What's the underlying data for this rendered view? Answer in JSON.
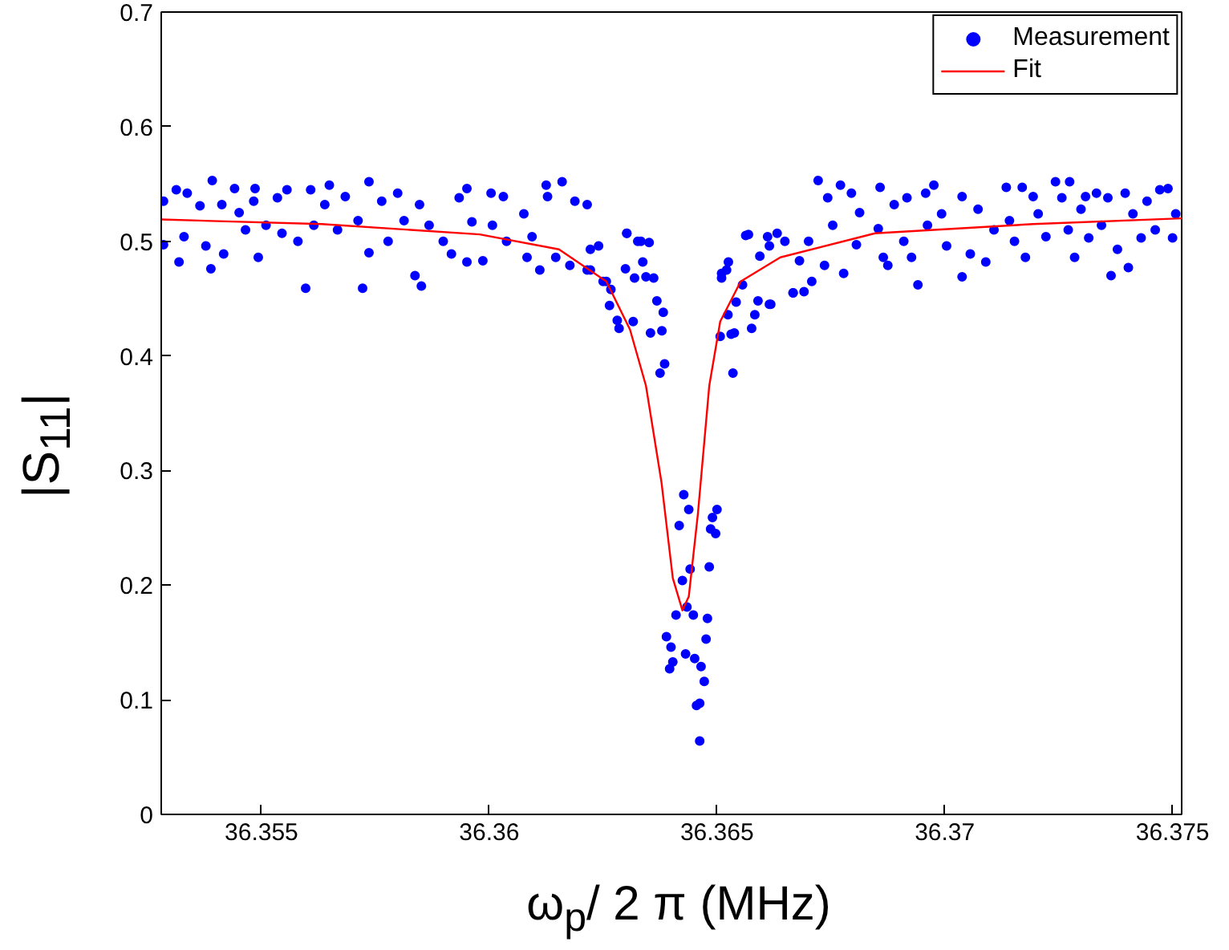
{
  "chart_data": {
    "type": "scatter",
    "xlabel": "ω$_{p}$/ 2 π (MHz)",
    "ylabel": "|S$_{11}$|",
    "xlim": [
      36.3528,
      36.3752
    ],
    "xticks": [
      36.355,
      36.36,
      36.365,
      36.37,
      36.375
    ],
    "ylim": [
      0,
      0.7
    ],
    "yticks": [
      0,
      0.1,
      0.2,
      0.3,
      0.4,
      0.5,
      0.6,
      0.7
    ],
    "grid": false,
    "legend": "top right",
    "series": [
      {
        "name": "Measurement",
        "marker": "circle",
        "color": "#0000ff",
        "x": [
          36.35285,
          36.35285,
          36.35313,
          36.35319,
          36.35337,
          36.3533,
          36.35365,
          36.35378,
          36.35392,
          36.35389,
          36.35413,
          36.35417,
          36.35441,
          36.35451,
          36.35465,
          36.35486,
          36.35483,
          36.35493,
          36.3551,
          36.35535,
          36.35545,
          36.35556,
          36.3558,
          36.35597,
          36.35608,
          36.35615,
          36.35639,
          36.35649,
          36.35667,
          36.35684,
          36.35712,
          36.35722,
          36.35736,
          36.35736,
          36.35764,
          36.35778,
          36.35799,
          36.35813,
          36.35837,
          36.35851,
          36.35847,
          36.35868,
          36.35899,
          36.35917,
          36.35934,
          36.35951,
          36.35951,
          36.35962,
          36.35986,
          36.36004,
          36.36007,
          36.36031,
          36.36038,
          36.36076,
          36.36083,
          36.36094,
          36.36125,
          36.36128,
          36.36111,
          36.3616,
          36.36146,
          36.36177,
          36.36188,
          36.36215,
          36.36222,
          36.3624,
          36.3625,
          36.36302,
          36.36326,
          36.36427,
          36.36438,
          36.36417,
          36.365,
          36.3649,
          36.36486,
          36.36497,
          36.36441,
          36.36424,
          36.36483,
          36.36434,
          36.3641,
          36.36448,
          36.36479,
          36.36389,
          36.36399,
          36.36476,
          36.36403,
          36.36396,
          36.36431,
          36.36451,
          36.36465,
          36.36472,
          36.36455,
          36.36462,
          36.36385,
          36.36375,
          36.36535,
          36.36379,
          36.36354,
          36.36285,
          36.36281,
          36.36382,
          36.36368,
          36.36264,
          36.36316,
          36.36507,
          36.36531,
          36.36538,
          36.36524,
          36.36576,
          36.36583,
          36.3659,
          36.36618,
          36.36542,
          36.36556,
          36.3651,
          36.36521,
          36.36525,
          36.36361,
          36.36344,
          36.36319,
          36.36337,
          36.36299,
          36.36257,
          36.36267,
          36.36222,
          36.36215,
          36.36302,
          36.36333,
          36.36351,
          36.36569,
          36.36615,
          36.36649,
          36.36667,
          36.3651,
          36.36563,
          36.36594,
          36.36611,
          36.36632,
          36.36615,
          36.36667,
          36.36691,
          36.36681,
          36.36701,
          36.36708,
          36.36722,
          36.36743,
          36.36736,
          36.36771,
          36.36754,
          36.36778,
          36.36795,
          36.36806,
          36.36813,
          36.36858,
          36.36854,
          36.36865,
          36.36875,
          36.36889,
          36.36917,
          36.3691,
          36.36927,
          36.36941,
          36.36958,
          36.36976,
          36.36962,
          36.36993,
          36.37004,
          36.37038,
          36.37038,
          36.37056,
          36.37073,
          36.3709,
          36.37108,
          36.37135,
          36.37142,
          36.37153,
          36.3717,
          36.37177,
          36.37194,
          36.37205,
          36.37222,
          36.37243,
          36.37257,
          36.37271,
          36.37274,
          36.37285,
          36.37299,
          36.37309,
          36.37316,
          36.37333,
          36.37344,
          36.37365,
          36.37358,
          36.37379,
          36.37396,
          36.37403,
          36.37413,
          36.37431,
          36.37444,
          36.37462,
          36.37472,
          36.3749,
          36.375,
          36.37507,
          36.36462
        ],
        "values": [
          0.535,
          0.497,
          0.545,
          0.482,
          0.542,
          0.504,
          0.531,
          0.496,
          0.553,
          0.476,
          0.532,
          0.489,
          0.546,
          0.525,
          0.51,
          0.546,
          0.535,
          0.486,
          0.514,
          0.538,
          0.507,
          0.545,
          0.5,
          0.459,
          0.545,
          0.514,
          0.532,
          0.549,
          0.51,
          0.539,
          0.518,
          0.459,
          0.552,
          0.49,
          0.535,
          0.5,
          0.542,
          0.518,
          0.47,
          0.461,
          0.532,
          0.514,
          0.5,
          0.489,
          0.538,
          0.546,
          0.482,
          0.517,
          0.483,
          0.542,
          0.514,
          0.539,
          0.5,
          0.524,
          0.486,
          0.504,
          0.549,
          0.539,
          0.475,
          0.552,
          0.486,
          0.479,
          0.535,
          0.532,
          0.475,
          0.496,
          0.465,
          0.507,
          0.5,
          0.279,
          0.266,
          0.252,
          0.266,
          0.259,
          0.249,
          0.245,
          0.214,
          0.204,
          0.216,
          0.181,
          0.174,
          0.174,
          0.171,
          0.155,
          0.146,
          0.153,
          0.133,
          0.127,
          0.14,
          0.136,
          0.129,
          0.116,
          0.095,
          0.097,
          0.393,
          0.385,
          0.385,
          0.422,
          0.42,
          0.424,
          0.431,
          0.438,
          0.448,
          0.444,
          0.43,
          0.417,
          0.419,
          0.42,
          0.436,
          0.424,
          0.436,
          0.448,
          0.445,
          0.447,
          0.462,
          0.468,
          0.475,
          0.482,
          0.468,
          0.469,
          0.468,
          0.482,
          0.476,
          0.465,
          0.458,
          0.493,
          0.475,
          0.507,
          0.5,
          0.499,
          0.506,
          0.496,
          0.5,
          0.455,
          0.472,
          0.505,
          0.487,
          0.504,
          0.507,
          0.445,
          0.455,
          0.456,
          0.483,
          0.5,
          0.465,
          0.553,
          0.538,
          0.479,
          0.549,
          0.514,
          0.472,
          0.542,
          0.497,
          0.525,
          0.547,
          0.511,
          0.486,
          0.479,
          0.532,
          0.538,
          0.5,
          0.486,
          0.462,
          0.542,
          0.549,
          0.514,
          0.524,
          0.496,
          0.539,
          0.469,
          0.489,
          0.528,
          0.482,
          0.51,
          0.547,
          0.518,
          0.5,
          0.547,
          0.486,
          0.539,
          0.524,
          0.504,
          0.552,
          0.538,
          0.51,
          0.552,
          0.486,
          0.528,
          0.539,
          0.503,
          0.542,
          0.514,
          0.47,
          0.538,
          0.493,
          0.542,
          0.477,
          0.524,
          0.503,
          0.535,
          0.51,
          0.545,
          0.546,
          0.503,
          0.524,
          0.064
        ]
      },
      {
        "name": "Fit",
        "type": "line",
        "line_style": "solid",
        "color": "#ff0000",
        "x": [
          36.3528,
          36.35632,
          36.35979,
          36.36153,
          36.36257,
          36.36309,
          36.36344,
          36.36378,
          36.36403,
          36.36424,
          36.36438,
          36.36458,
          36.36483,
          36.36507,
          36.36552,
          36.36639,
          36.36847,
          36.37194,
          36.3752
        ],
        "values": [
          0.519,
          0.515,
          0.506,
          0.493,
          0.465,
          0.423,
          0.374,
          0.29,
          0.206,
          0.178,
          0.19,
          0.262,
          0.374,
          0.43,
          0.465,
          0.486,
          0.507,
          0.515,
          0.52
        ]
      }
    ]
  }
}
